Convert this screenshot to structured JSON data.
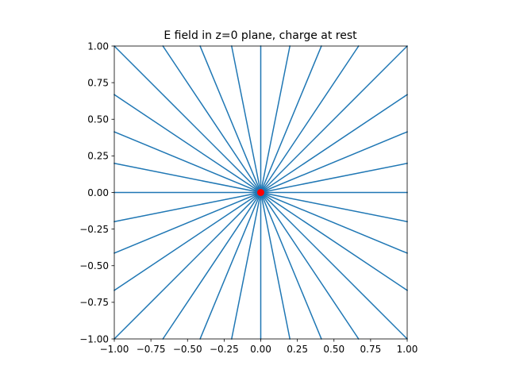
{
  "chart_data": {
    "type": "line",
    "title": "E field in z=0 plane, charge at rest",
    "xlabel": "",
    "ylabel": "",
    "xlim": [
      -1,
      1
    ],
    "ylim": [
      -1,
      1
    ],
    "grid": false,
    "x_ticks": [
      "−1.00",
      "−0.75",
      "−0.50",
      "−0.25",
      "0.00",
      "0.25",
      "0.50",
      "0.75",
      "1.00"
    ],
    "y_ticks": [
      "−1.00",
      "−0.75",
      "−0.50",
      "−0.25",
      "0.00",
      "0.25",
      "0.50",
      "0.75",
      "1.00"
    ],
    "field_lines": {
      "count": 32,
      "start_angle_deg": 0,
      "step_angle_deg": 11.25,
      "origin": [
        0,
        0
      ],
      "color": "#1f77b4"
    },
    "charge": {
      "x": 0,
      "y": 0,
      "color": "#ff0000"
    }
  }
}
